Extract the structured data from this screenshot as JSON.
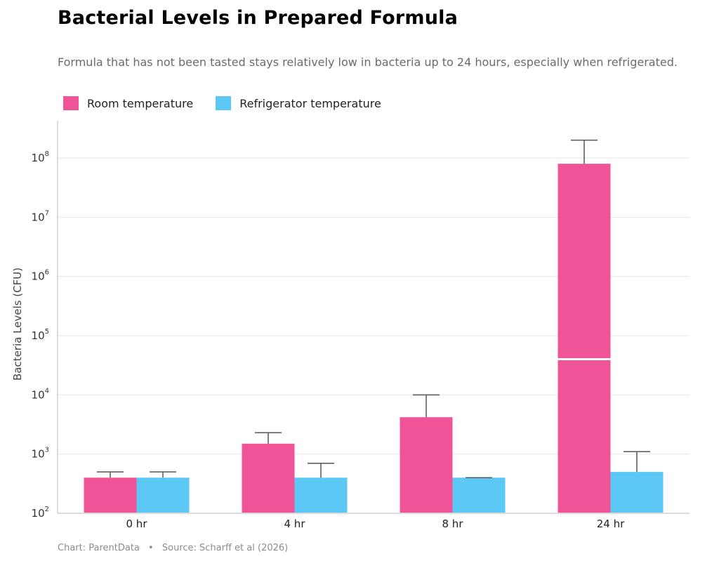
{
  "colors": {
    "room": "#ef5499",
    "fridge": "#5bc8f6",
    "error_bar": "#555555",
    "grid": "#e6e6e6",
    "axis": "#bbbbbb"
  },
  "chart_data": {
    "type": "bar",
    "title": "Bacterial Levels in Prepared Formula",
    "subtitle": "Formula that has not been tasted stays relatively low in bacteria up to 24 hours, especially when refrigerated.",
    "xlabel": "",
    "ylabel": "Bacteria Levels (CFU)",
    "yscale": "log",
    "ylim": [
      100,
      500000000
    ],
    "yticks": [
      {
        "value": 100,
        "base": "10",
        "exp": "2"
      },
      {
        "value": 1000,
        "base": "10",
        "exp": "3"
      },
      {
        "value": 10000,
        "base": "10",
        "exp": "4"
      },
      {
        "value": 100000,
        "base": "10",
        "exp": "5"
      },
      {
        "value": 1000000,
        "base": "10",
        "exp": "6"
      },
      {
        "value": 10000000,
        "base": "10",
        "exp": "7"
      },
      {
        "value": 100000000,
        "base": "10",
        "exp": "8"
      }
    ],
    "categories": [
      "0 hr",
      "4 hr",
      "8 hr",
      "24 hr"
    ],
    "series": [
      {
        "name": "Room temperature",
        "color_key": "room",
        "values": [
          400,
          1500,
          4200,
          80000000
        ],
        "error_upper": [
          500,
          2300,
          10000,
          200000000
        ]
      },
      {
        "name": "Refrigerator temperature",
        "color_key": "fridge",
        "values": [
          400,
          400,
          400,
          500
        ],
        "error_upper": [
          500,
          700,
          400,
          1100
        ]
      }
    ],
    "break_line": {
      "category": "24 hr",
      "series": "Room temperature",
      "value": 40000
    },
    "legend": "top-left"
  },
  "footer": {
    "chart_credit": "Chart: ParentData",
    "separator": "•",
    "source": "Source: Scharff et al (2026)"
  }
}
